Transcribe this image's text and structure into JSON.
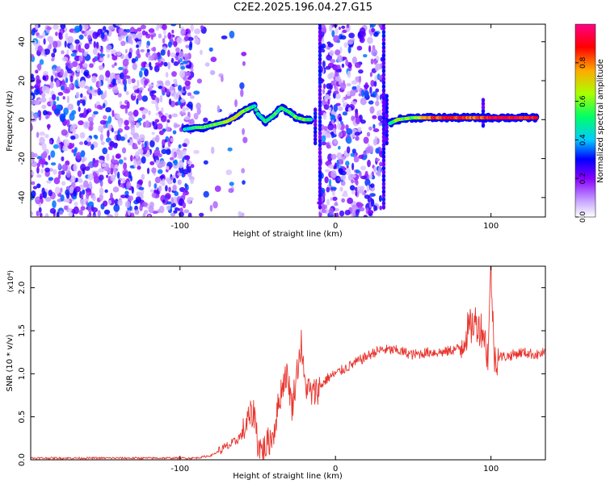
{
  "figure_title": "C2E2.2025.196.04.27.G15",
  "chart_data": [
    {
      "type": "heatmap",
      "xlabel": "Height of straight line (km)",
      "ylabel": "Frequency (Hz)",
      "xlim": [
        -196,
        135
      ],
      "ylim": [
        -50,
        49
      ],
      "x_ticks": [
        -100,
        0,
        100
      ],
      "x_tick_labels": [
        "-100",
        "0",
        "100"
      ],
      "y_ticks": [
        -40,
        -20,
        0,
        20,
        40
      ],
      "y_tick_labels": [
        "-40",
        "-20",
        "0",
        "20",
        "40"
      ],
      "colorbar": {
        "label": "Normalized spectral amplitude",
        "range": [
          0,
          1
        ],
        "ticks": [
          0.0,
          0.2,
          0.4,
          0.6,
          0.8
        ],
        "tick_labels": [
          "0.0",
          "0.2",
          "0.4",
          "0.6",
          "0.8"
        ],
        "colors": [
          "#ffffff",
          "#c8a8ff",
          "#8800ff",
          "#0000ff",
          "#00ccff",
          "#00ff66",
          "#aaff00",
          "#ffaa00",
          "#ff0000",
          "#ff0088"
        ]
      },
      "noise_regions": [
        {
          "x_range": [
            -196,
            -92
          ],
          "density": "high"
        },
        {
          "x_range": [
            -90,
            -58
          ],
          "density": "sparse"
        },
        {
          "x_range": [
            -10,
            30
          ],
          "density": "high"
        }
      ],
      "signal_track": [
        {
          "x": -97,
          "y": -5,
          "amp": 0.45
        },
        {
          "x": -90,
          "y": -4,
          "amp": 0.5
        },
        {
          "x": -85,
          "y": -4,
          "amp": 0.55
        },
        {
          "x": -80,
          "y": -3,
          "amp": 0.55
        },
        {
          "x": -75,
          "y": -2,
          "amp": 0.6
        },
        {
          "x": -70,
          "y": -1,
          "amp": 0.6
        },
        {
          "x": -65,
          "y": 1,
          "amp": 0.7
        },
        {
          "x": -60,
          "y": 4,
          "amp": 0.6
        },
        {
          "x": -55,
          "y": 6,
          "amp": 0.55
        },
        {
          "x": -52,
          "y": 7,
          "amp": 0.5
        },
        {
          "x": -50,
          "y": 3,
          "amp": 0.45
        },
        {
          "x": -45,
          "y": -1,
          "amp": 0.5
        },
        {
          "x": -40,
          "y": 2,
          "amp": 0.55
        },
        {
          "x": -35,
          "y": 6,
          "amp": 0.5
        },
        {
          "x": -30,
          "y": 4,
          "amp": 0.5
        },
        {
          "x": -25,
          "y": 1,
          "amp": 0.55
        },
        {
          "x": -20,
          "y": 0,
          "amp": 0.6
        },
        {
          "x": -15,
          "y": 0,
          "amp": 0.5
        },
        {
          "x": 35,
          "y": -2,
          "amp": 0.5
        },
        {
          "x": 40,
          "y": 0,
          "amp": 0.6
        },
        {
          "x": 50,
          "y": 1,
          "amp": 0.6
        },
        {
          "x": 60,
          "y": 1,
          "amp": 0.8
        },
        {
          "x": 70,
          "y": 1,
          "amp": 0.85
        },
        {
          "x": 80,
          "y": 1,
          "amp": 0.85
        },
        {
          "x": 90,
          "y": 1,
          "amp": 0.8
        },
        {
          "x": 100,
          "y": 1,
          "amp": 0.9
        },
        {
          "x": 110,
          "y": 1,
          "amp": 0.9
        },
        {
          "x": 120,
          "y": 1,
          "amp": 0.9
        },
        {
          "x": 130,
          "y": 1,
          "amp": 0.9
        }
      ],
      "vertical_streaks": [
        {
          "x": -13,
          "y_range": [
            -12,
            5
          ]
        },
        {
          "x": -10,
          "y_range": [
            -45,
            49
          ]
        },
        {
          "x": 31,
          "y_range": [
            -45,
            49
          ]
        },
        {
          "x": 33,
          "y_range": [
            -12,
            12
          ]
        },
        {
          "x": 95,
          "y_range": [
            -3,
            10
          ]
        }
      ]
    },
    {
      "type": "line",
      "xlabel": "Height of straight line (km)",
      "ylabel": "SNR (10 * v/v)",
      "y_multiplier": "(x10⁴)",
      "xlim": [
        -196,
        135
      ],
      "ylim": [
        0,
        2.25
      ],
      "x_ticks": [
        -100,
        0,
        100
      ],
      "x_tick_labels": [
        "-100",
        "0",
        "100"
      ],
      "y_ticks": [
        0.0,
        0.5,
        1.0,
        1.5,
        2.0
      ],
      "y_tick_labels": [
        "0.0",
        "0.5",
        "1.0",
        "1.5",
        "2.0"
      ],
      "line_color": "#e8352e",
      "series": [
        {
          "x": [
            -196,
            -180,
            -160,
            -140,
            -120,
            -100,
            -90,
            -80,
            -75,
            -70,
            -65,
            -60,
            -55,
            -52,
            -50,
            -47,
            -45,
            -40,
            -35,
            -32,
            -30,
            -28,
            -25,
            -22,
            -20,
            -15,
            -10,
            -5,
            0,
            5,
            10,
            15,
            20,
            25,
            30,
            40,
            50,
            60,
            70,
            80,
            85,
            90,
            95,
            98,
            100,
            102,
            105,
            110,
            120,
            130,
            135
          ],
          "y": [
            0.02,
            0.02,
            0.02,
            0.02,
            0.02,
            0.02,
            0.02,
            0.05,
            0.1,
            0.15,
            0.2,
            0.3,
            0.5,
            0.55,
            0.2,
            0.1,
            0.15,
            0.3,
            0.8,
            1.0,
            0.9,
            0.6,
            1.0,
            1.35,
            0.9,
            0.75,
            0.85,
            0.95,
            1.0,
            1.05,
            1.1,
            1.15,
            1.2,
            1.25,
            1.28,
            1.27,
            1.22,
            1.25,
            1.25,
            1.3,
            1.5,
            1.6,
            1.5,
            1.2,
            2.25,
            1.2,
            1.2,
            1.2,
            1.25,
            1.22,
            1.25
          ]
        }
      ]
    }
  ]
}
